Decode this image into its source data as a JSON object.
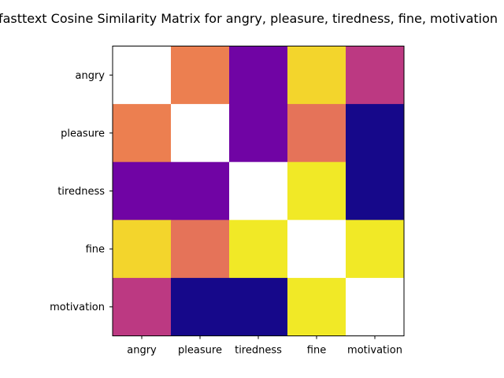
{
  "chart_data": {
    "type": "heatmap",
    "title": "fasttext Cosine Similarity Matrix for angry, pleasure, tiredness, fine, motivation",
    "xlabel": "",
    "ylabel": "",
    "x_categories": [
      "angry",
      "pleasure",
      "tiredness",
      "fine",
      "motivation"
    ],
    "y_categories": [
      "angry",
      "pleasure",
      "tiredness",
      "fine",
      "motivation"
    ],
    "colormap": "plasma",
    "diagonal": "blank",
    "grid": false,
    "values": [
      [
        null,
        0.68,
        0.22,
        0.91,
        0.45
      ],
      [
        0.68,
        null,
        0.22,
        0.64,
        0.02
      ],
      [
        0.22,
        0.22,
        null,
        0.96,
        0.02
      ],
      [
        0.91,
        0.64,
        0.96,
        null,
        0.96
      ],
      [
        0.45,
        0.02,
        0.02,
        0.96,
        null
      ]
    ]
  }
}
